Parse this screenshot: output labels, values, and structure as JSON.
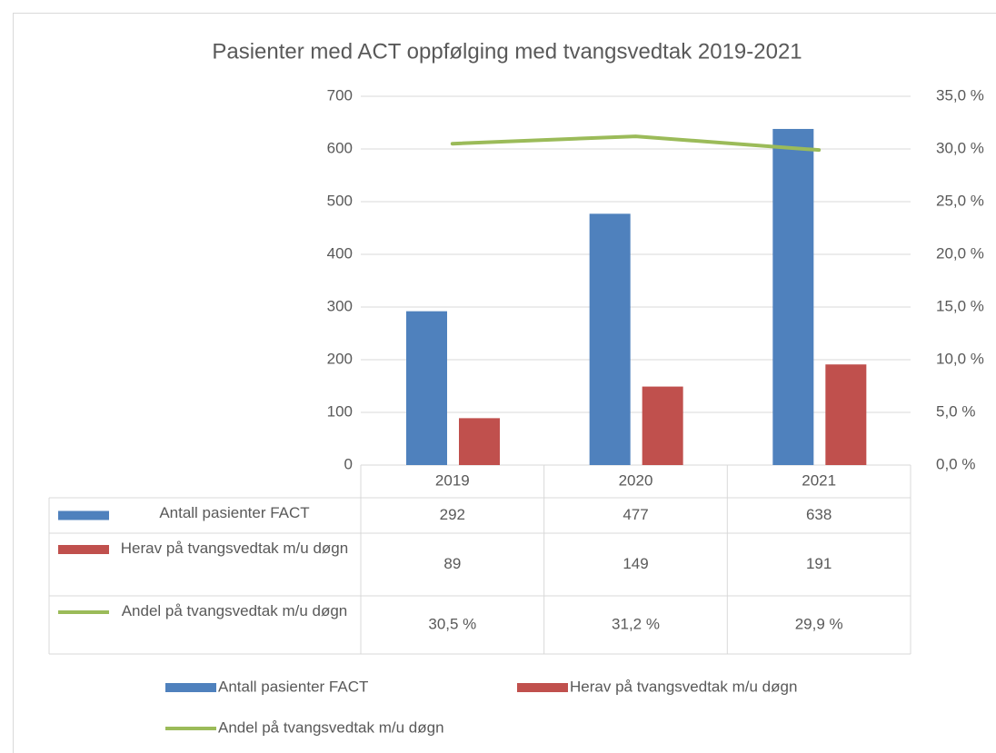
{
  "chart_data": {
    "type": "bar",
    "title": "Pasienter med ACT oppfølging med tvangsvedtak 2019-2021",
    "categories": [
      "2019",
      "2020",
      "2021"
    ],
    "series": [
      {
        "name": "Antall pasienter FACT",
        "color": "#4f81bd",
        "type": "bar",
        "values": [
          292,
          477,
          638
        ]
      },
      {
        "name": "Herav på tvangsvedtak m/u døgn",
        "color": "#c0504d",
        "type": "bar",
        "values": [
          89,
          149,
          191
        ]
      },
      {
        "name": "Andel på tvangsvedtak m/u døgn",
        "color": "#9bbb59",
        "type": "line",
        "axis": "y2",
        "values": [
          30.5,
          31.2,
          29.9
        ],
        "value_labels": [
          "30,5 %",
          "31,2 %",
          "29,9 %"
        ]
      }
    ],
    "ylim": [
      0,
      700
    ],
    "yticks": [
      0,
      100,
      200,
      300,
      400,
      500,
      600,
      700
    ],
    "y2lim": [
      0,
      35
    ],
    "y2ticks": [
      {
        "value": 0,
        "label": "0,0 %"
      },
      {
        "value": 5,
        "label": "5,0 %"
      },
      {
        "value": 10,
        "label": "10,0 %"
      },
      {
        "value": 15,
        "label": "15,0 %"
      },
      {
        "value": 20,
        "label": "20,0 %"
      },
      {
        "value": 25,
        "label": "25,0 %"
      },
      {
        "value": 30,
        "label": "30,0 %"
      },
      {
        "value": 35,
        "label": "35,0 %"
      }
    ],
    "grid": true,
    "legend": "bottom"
  }
}
